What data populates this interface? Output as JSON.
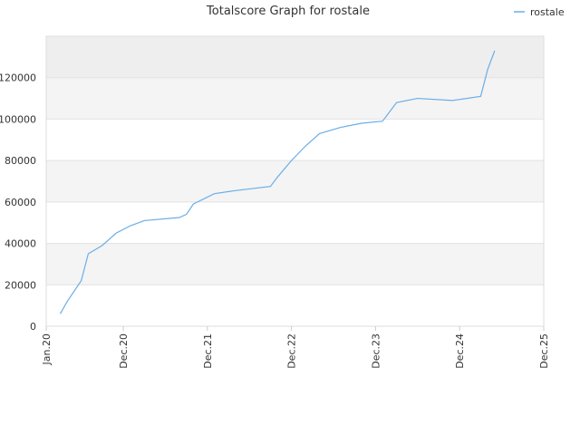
{
  "chart_data": {
    "type": "line",
    "title": "Totalscore Graph for rostale",
    "x": [
      "2020-03",
      "2020-04",
      "2020-06",
      "2020-07",
      "2020-09",
      "2020-11",
      "2021-01",
      "2021-03",
      "2021-08",
      "2021-09",
      "2021-10",
      "2022-01",
      "2022-04",
      "2022-09",
      "2022-10",
      "2022-12",
      "2023-02",
      "2023-04",
      "2023-07",
      "2023-10",
      "2024-01",
      "2024-03",
      "2024-06",
      "2024-11",
      "2025-03",
      "2025-04",
      "2025-05"
    ],
    "series": [
      {
        "name": "rostale",
        "color": "#6aaee8",
        "values": [
          6000,
          12000,
          22000,
          35000,
          39000,
          45000,
          48500,
          51000,
          52500,
          54000,
          59000,
          64000,
          65500,
          67500,
          72000,
          80000,
          87000,
          93000,
          96000,
          98000,
          99000,
          108000,
          110000,
          109000,
          111000,
          124000,
          133000
        ]
      }
    ],
    "xlim": [
      "2020-01",
      "2025-12"
    ],
    "xticks": [
      {
        "value": "2020-01",
        "label": "Jan.20"
      },
      {
        "value": "2020-12",
        "label": "Dec.20"
      },
      {
        "value": "2021-12",
        "label": "Dec.21"
      },
      {
        "value": "2022-12",
        "label": "Dec.22"
      },
      {
        "value": "2023-12",
        "label": "Dec.23"
      },
      {
        "value": "2024-12",
        "label": "Dec.24"
      },
      {
        "value": "2025-12",
        "label": "Dec.25"
      }
    ],
    "ylim": [
      0,
      140000
    ],
    "yticks": [
      0,
      20000,
      40000,
      60000,
      80000,
      100000,
      120000
    ],
    "grid": true,
    "legend": "top-right"
  }
}
